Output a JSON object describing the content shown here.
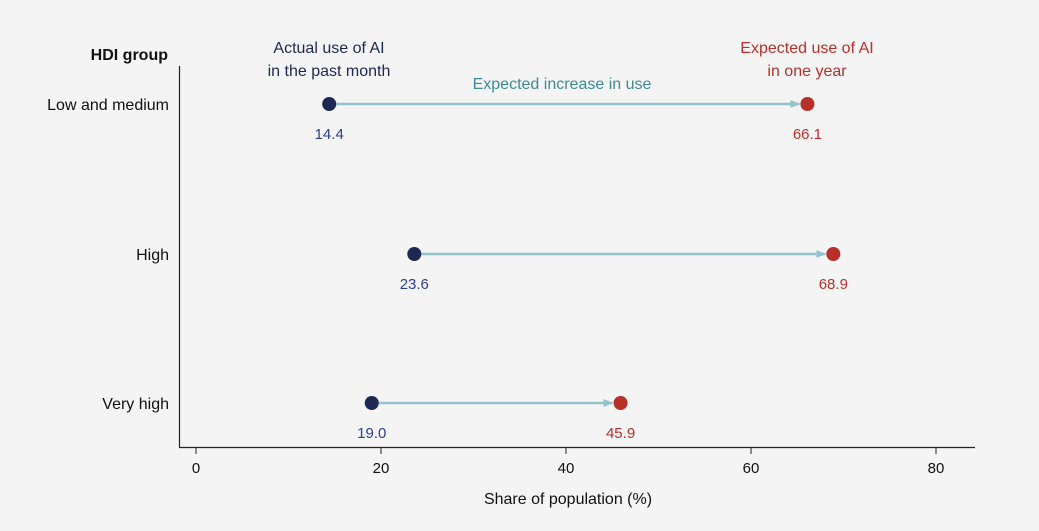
{
  "chart_data": {
    "type": "dumbbell",
    "y_axis_title": "HDI group",
    "xlabel": "Share of population (%)",
    "xlim": [
      -2,
      84
    ],
    "xticks": [
      0,
      20,
      40,
      60,
      80
    ],
    "xtick_labels": [
      "0",
      "20",
      "40",
      "60",
      "80"
    ],
    "grid": false,
    "categories": [
      "Low and medium",
      "High",
      "Very high"
    ],
    "series": [
      {
        "name": "Actual use of AI in the past month",
        "values": [
          14.4,
          23.6,
          19.0
        ],
        "labels": [
          "14.4",
          "23.6",
          "19.0"
        ],
        "color": "#1f2753",
        "label_color": "#2b3f8f"
      },
      {
        "name": "Expected use of AI in one year",
        "values": [
          66.1,
          68.9,
          45.9
        ],
        "labels": [
          "66.1",
          "68.9",
          "45.9"
        ],
        "color": "#b8302a",
        "label_color": "#b8302a"
      }
    ],
    "connector": {
      "name": "Expected increase in use",
      "color": "#92c3cc"
    },
    "annotations": {
      "actual_line1": "Actual use of AI",
      "actual_line2": "in the past month",
      "expected_line1": "Expected use of AI",
      "expected_line2": "in one year",
      "increase": "Expected increase in use",
      "actual_color": "#1f2753",
      "expected_color": "#b8302a",
      "increase_color": "#3e8b93"
    }
  }
}
